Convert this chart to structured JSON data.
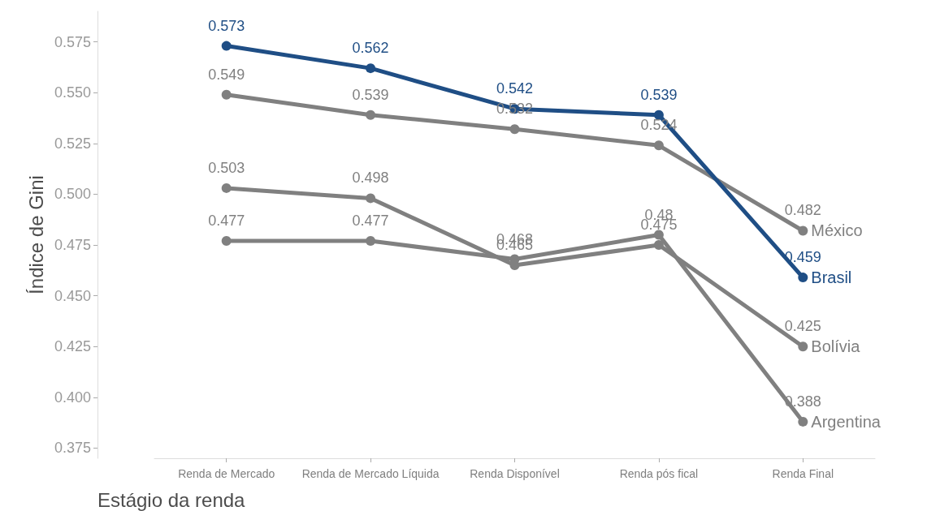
{
  "chart_data": {
    "type": "line",
    "xlabel": "Estágio da renda",
    "ylabel": "Índice de Gini",
    "categories": [
      "Renda de Mercado",
      "Renda de Mercado Líquida",
      "Renda Disponível",
      "Renda pós fical",
      "Renda Final"
    ],
    "series": [
      {
        "name": "México",
        "color": "#808080",
        "values": [
          0.549,
          0.539,
          0.532,
          0.524,
          0.482
        ]
      },
      {
        "name": "Bolívia",
        "color": "#808080",
        "values": [
          0.503,
          0.498,
          0.465,
          0.475,
          0.425
        ]
      },
      {
        "name": "Argentina",
        "color": "#808080",
        "values": [
          0.477,
          0.477,
          0.468,
          0.48,
          0.388
        ]
      },
      {
        "name": "Brasil",
        "color": "#1f4e85",
        "values": [
          0.573,
          0.562,
          0.542,
          0.539,
          0.459
        ]
      }
    ],
    "ylim": [
      0.37,
      0.59
    ],
    "yticks": [
      0.375,
      {
        "value": 0.4,
        "label": "0.400"
      },
      0.425,
      {
        "value": 0.45,
        "label": "0.450"
      },
      0.475,
      {
        "value": 0.5,
        "label": "0.500"
      },
      0.525,
      {
        "value": 0.55,
        "label": "0.550"
      },
      0.575
    ],
    "data_labels": true,
    "marker": "circle",
    "line_style": "solid",
    "grid": false,
    "legend": false
  }
}
